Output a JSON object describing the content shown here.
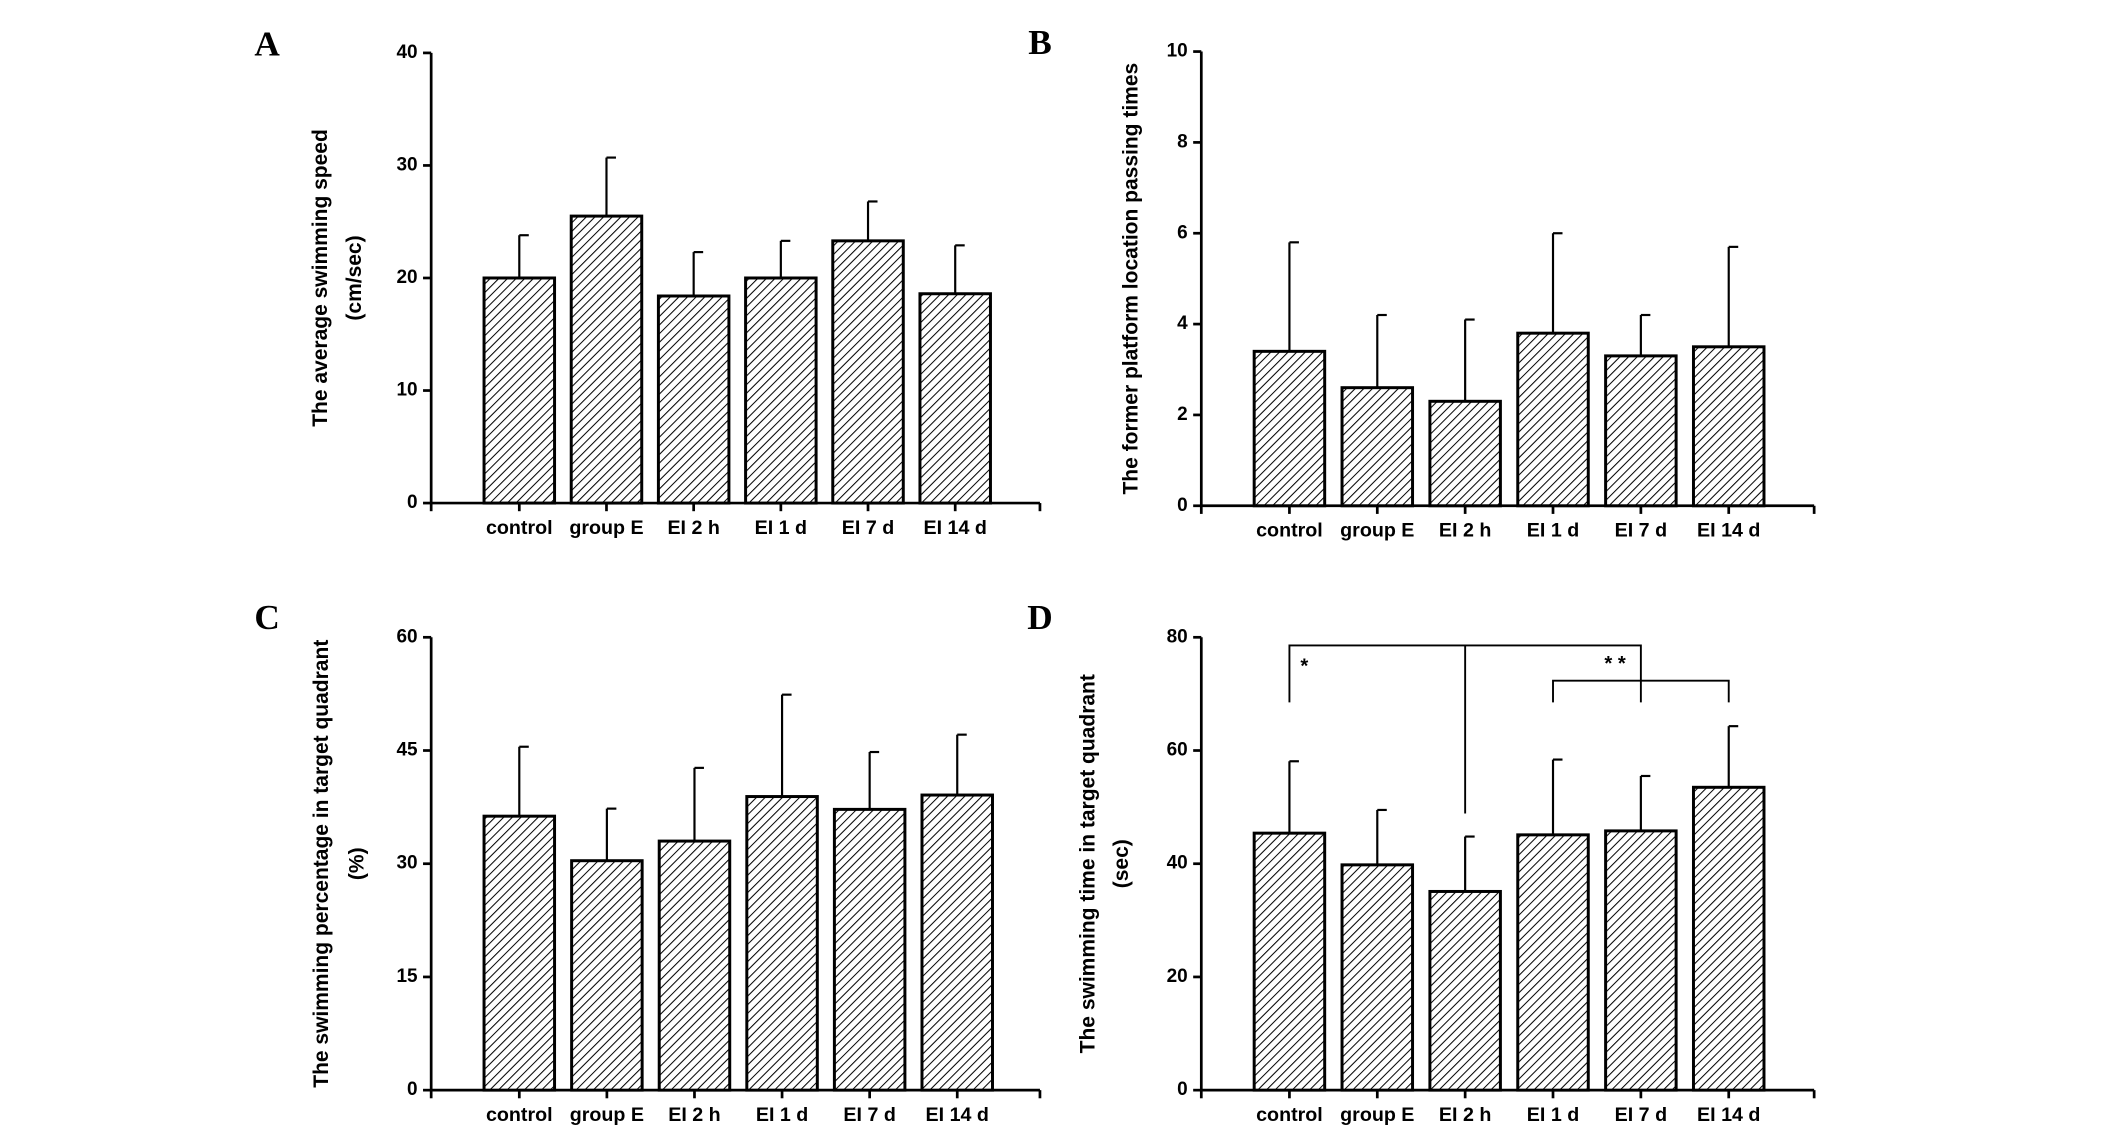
{
  "chart_data": [
    {
      "type": "bar",
      "panel": "A",
      "ylabel": [
        "The average swimming speed",
        "(cm/sec)"
      ],
      "categories": [
        "control",
        "group E",
        "EI 2 h",
        "EI 1 d",
        "EI 7 d",
        "EI 14 d"
      ],
      "values": [
        20,
        25.5,
        18.4,
        20,
        23.3,
        18.6
      ],
      "errors": [
        3.8,
        5.2,
        3.9,
        3.3,
        3.5,
        4.3
      ],
      "ylim": [
        0,
        40
      ],
      "yticks": [
        0,
        10,
        20,
        30,
        40
      ],
      "color": "#000000"
    },
    {
      "type": "bar",
      "panel": "B",
      "ylabel": [
        "The former platform location passing times"
      ],
      "categories": [
        "control",
        "group E",
        "EI 2 h",
        "EI 1 d",
        "EI 7 d",
        "EI 14 d"
      ],
      "values": [
        3.4,
        2.6,
        2.3,
        3.8,
        3.3,
        3.5
      ],
      "errors": [
        2.4,
        1.6,
        1.8,
        2.2,
        0.9,
        2.2
      ],
      "ylim": [
        0,
        10
      ],
      "yticks": [
        0,
        2,
        4,
        6,
        8,
        10
      ],
      "color": "#000000"
    },
    {
      "type": "bar",
      "panel": "C",
      "ylabel": [
        "The swimming percentage in target quadrant",
        "(%)"
      ],
      "categories": [
        "control",
        "group E",
        "EI 2 h",
        "EI 1 d",
        "EI 7 d",
        "EI 14 d"
      ],
      "values": [
        36.3,
        30.4,
        33,
        38.9,
        37.2,
        39.1
      ],
      "errors": [
        9.2,
        6.9,
        9.7,
        13.5,
        7.6,
        8.0
      ],
      "ylim": [
        0,
        60
      ],
      "yticks": [
        0,
        15,
        30,
        45,
        60
      ],
      "color": "#000000"
    },
    {
      "type": "bar",
      "panel": "D",
      "ylabel": [
        "The swimming time in target quadrant",
        "(sec)"
      ],
      "categories": [
        "control",
        "group E",
        "EI 2 h",
        "EI 1 d",
        "EI 7 d",
        "EI 14 d"
      ],
      "values": [
        45.4,
        39.8,
        35.1,
        45.1,
        45.8,
        53.5
      ],
      "errors": [
        12.7,
        9.7,
        9.7,
        13.3,
        9.7,
        10.8
      ],
      "ylim": [
        0,
        80
      ],
      "yticks": [
        0,
        20,
        40,
        60,
        80
      ],
      "color": "#000000",
      "annotations": [
        "*",
        "* *"
      ]
    }
  ]
}
